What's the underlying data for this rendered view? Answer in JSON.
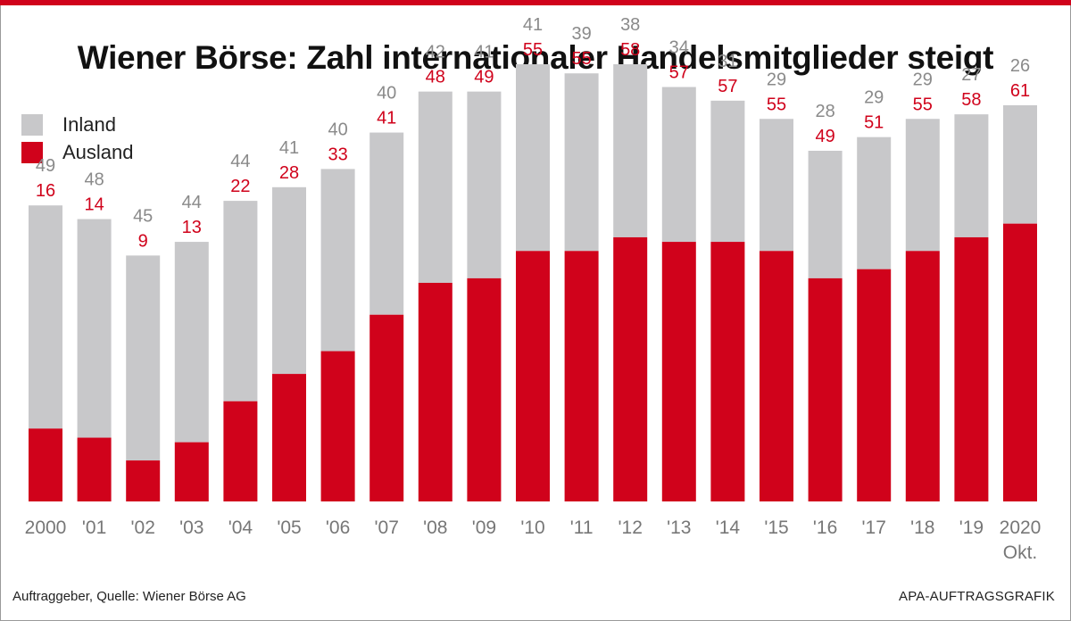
{
  "colors": {
    "accent": "#d0021b",
    "inland": "#c8c8ca",
    "ausland": "#d0021b",
    "inland_label": "#8a8a8a",
    "ausland_label": "#d0021b",
    "axis": "#777777"
  },
  "header": {
    "title": "Wiener Börse: Zahl internationaler Handelsmitglieder steigt"
  },
  "legend": {
    "items": [
      {
        "label": "Inland",
        "color": "#c8c8ca"
      },
      {
        "label": "Ausland",
        "color": "#d0021b"
      }
    ]
  },
  "footer": {
    "source": "Auftraggeber, Quelle: Wiener Börse AG",
    "credit": "APA-AUFTRAGSGRAFIK"
  },
  "chart_data": {
    "type": "bar",
    "stacked": true,
    "title": "Wiener Börse: Zahl internationaler Handelsmitglieder steigt",
    "categories": [
      "2000",
      "'01",
      "'02",
      "'03",
      "'04",
      "'05",
      "'06",
      "'07",
      "'08",
      "'09",
      "'10",
      "'11",
      "'12",
      "'13",
      "'14",
      "'15",
      "'16",
      "'17",
      "'18",
      "'19",
      "2020"
    ],
    "category_sublabels": [
      "",
      "",
      "",
      "",
      "",
      "",
      "",
      "",
      "",
      "",
      "",
      "",
      "",
      "",
      "",
      "",
      "",
      "",
      "",
      "",
      "Okt."
    ],
    "series": [
      {
        "name": "Ausland",
        "values": [
          16,
          14,
          9,
          13,
          22,
          28,
          33,
          41,
          48,
          49,
          55,
          55,
          58,
          57,
          57,
          55,
          49,
          51,
          55,
          58,
          61
        ]
      },
      {
        "name": "Inland",
        "values": [
          49,
          48,
          45,
          44,
          44,
          41,
          40,
          40,
          42,
          41,
          41,
          39,
          38,
          34,
          31,
          29,
          28,
          29,
          29,
          27,
          26
        ]
      }
    ],
    "ylim": [
      0,
      96
    ],
    "grid": false,
    "y_axis_visible": false,
    "legend_position": "top-left",
    "data_labels": true
  }
}
